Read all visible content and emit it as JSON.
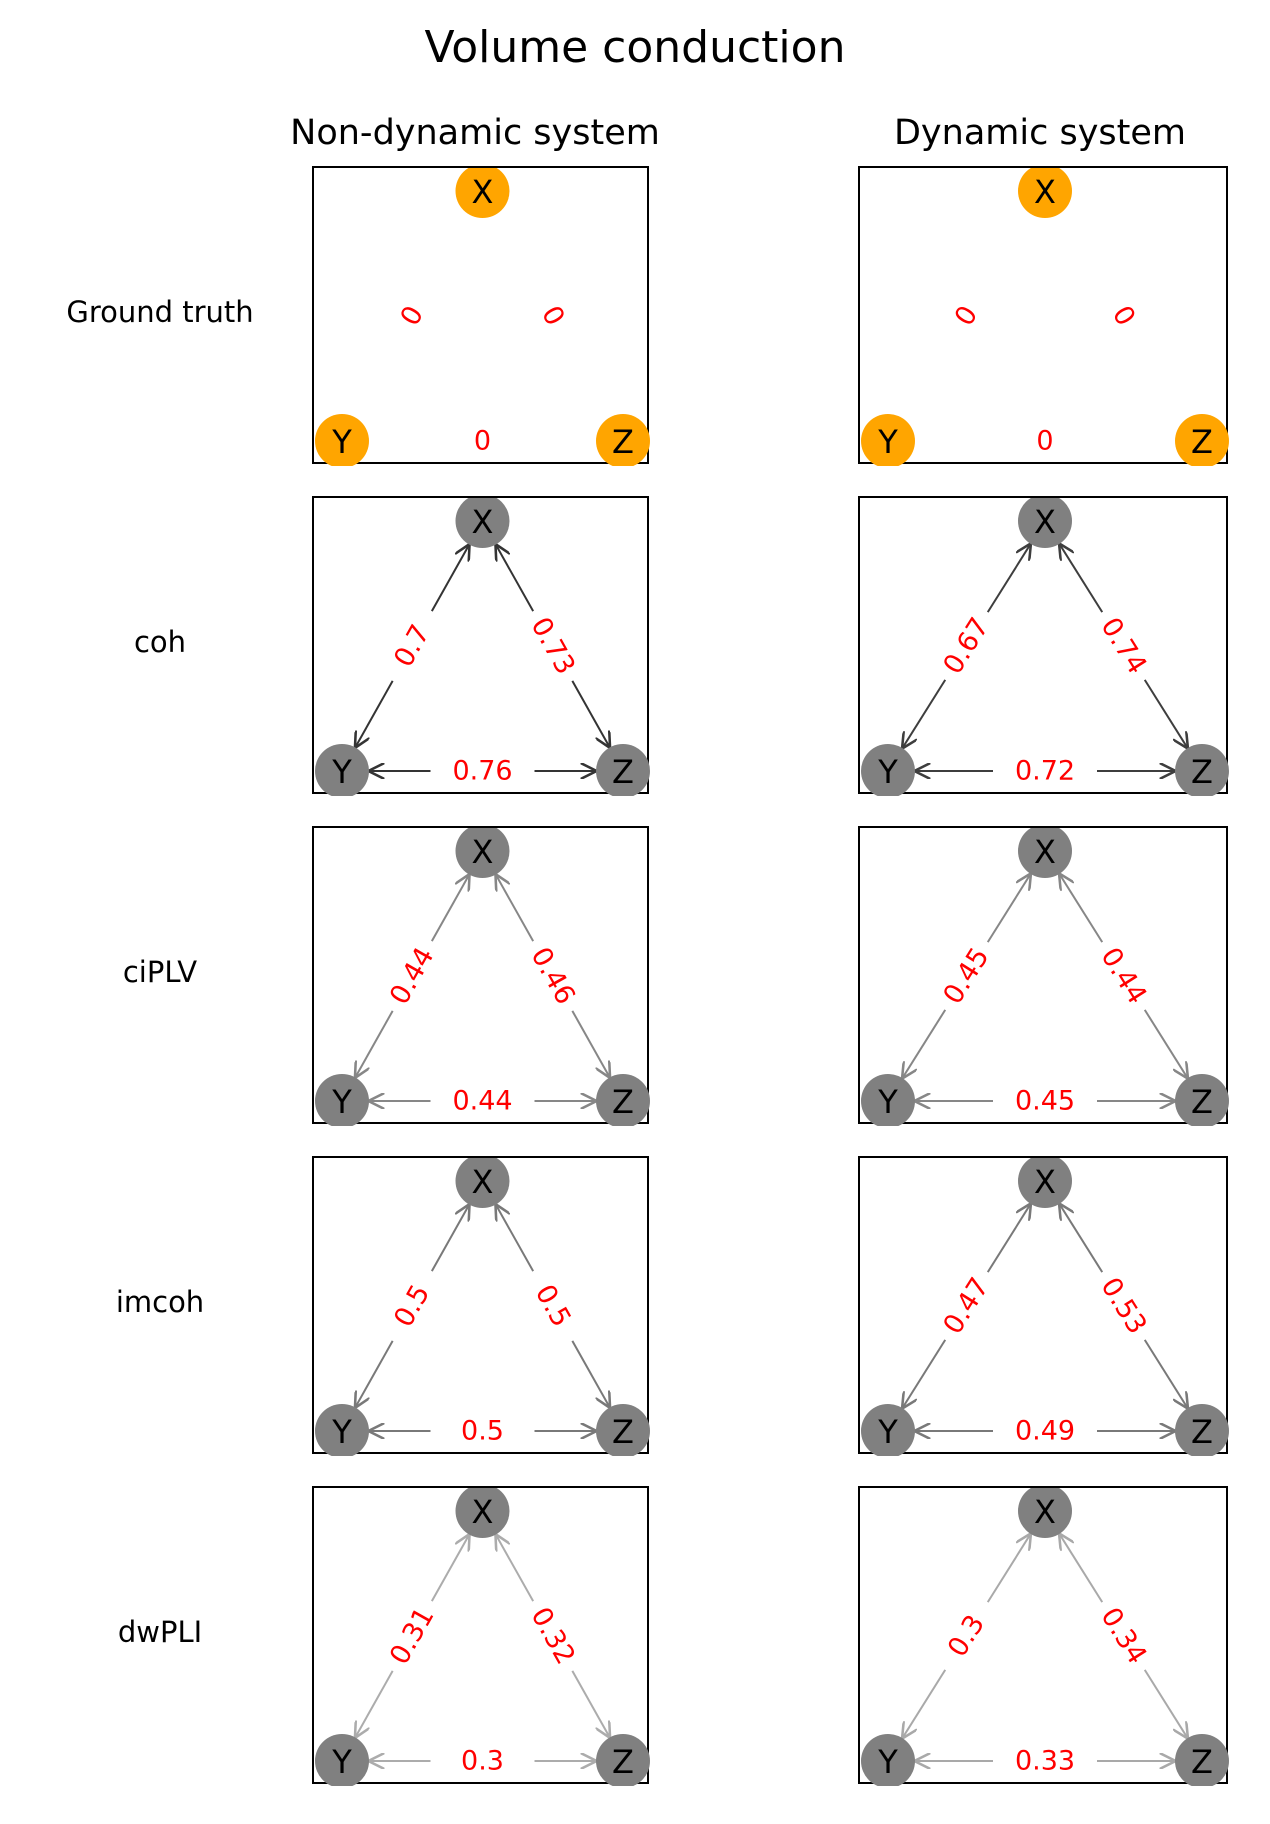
{
  "title": "Volume conduction",
  "columns": [
    {
      "label": "Non-dynamic system"
    },
    {
      "label": "Dynamic system"
    }
  ],
  "rows": [
    {
      "label": "Ground truth",
      "panels": [
        {
          "style": "ground",
          "xy": "0",
          "xz": "0",
          "yz": "0"
        },
        {
          "style": "ground",
          "xy": "0",
          "xz": "0",
          "yz": "0"
        }
      ]
    },
    {
      "label": "coh",
      "panels": [
        {
          "style": "network",
          "xy": "0.7",
          "xz": "0.73",
          "yz": "0.76",
          "edge_shade": 0.76
        },
        {
          "style": "network",
          "xy": "0.67",
          "xz": "0.74",
          "yz": "0.72",
          "edge_shade": 0.72
        }
      ]
    },
    {
      "label": "ciPLV",
      "panels": [
        {
          "style": "network",
          "xy": "0.44",
          "xz": "0.46",
          "yz": "0.44",
          "edge_shade": 0.45
        },
        {
          "style": "network",
          "xy": "0.45",
          "xz": "0.44",
          "yz": "0.45",
          "edge_shade": 0.45
        }
      ]
    },
    {
      "label": "imcoh",
      "panels": [
        {
          "style": "network",
          "xy": "0.5",
          "xz": "0.5",
          "yz": "0.5",
          "edge_shade": 0.5
        },
        {
          "style": "network",
          "xy": "0.47",
          "xz": "0.53",
          "yz": "0.49",
          "edge_shade": 0.5
        }
      ]
    },
    {
      "label": "dwPLI",
      "panels": [
        {
          "style": "network",
          "xy": "0.31",
          "xz": "0.32",
          "yz": "0.3",
          "edge_shade": 0.31
        },
        {
          "style": "network",
          "xy": "0.3",
          "xz": "0.34",
          "yz": "0.33",
          "edge_shade": 0.32
        }
      ]
    }
  ],
  "nodes": [
    "X",
    "Y",
    "Z"
  ],
  "colors": {
    "ground_node": "#FFA500",
    "network_node": "#808080",
    "edge_label": "#FF0000",
    "node_text": "#000000"
  }
}
